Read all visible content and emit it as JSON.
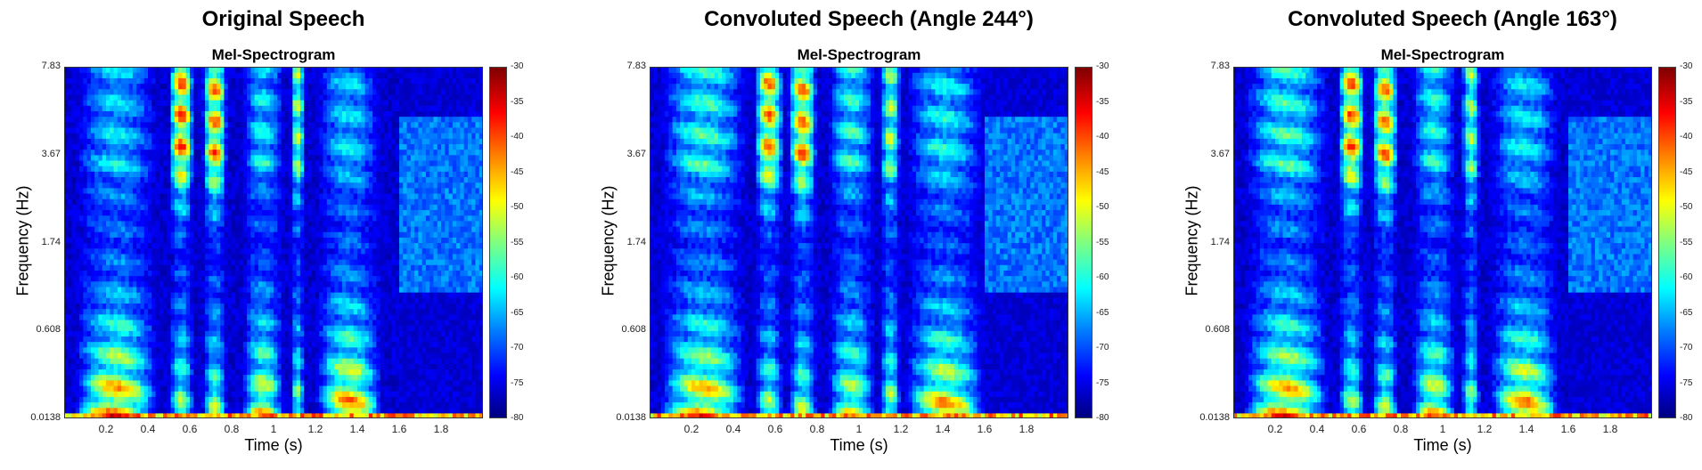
{
  "chart_data": [
    {
      "type": "heatmap",
      "suptitle": "Original Speech",
      "title": "Mel-Spectrogram",
      "xlabel": "Time (s)",
      "ylabel": "Frequency (Hz)",
      "xticks": [
        "0.2",
        "0.4",
        "0.6",
        "0.8",
        "1",
        "1.2",
        "1.4",
        "1.6",
        "1.8"
      ],
      "xtick_values": [
        0.2,
        0.4,
        0.6,
        0.8,
        1.0,
        1.2,
        1.4,
        1.6,
        1.8
      ],
      "xlim": [
        0,
        2.0
      ],
      "yticks": [
        "7.83",
        "3.67",
        "1.74",
        "0.608",
        "0.0138"
      ],
      "colorbar": {
        "ticks": [
          "-30",
          "-35",
          "-40",
          "-45",
          "-50",
          "-55",
          "-60",
          "-65",
          "-70",
          "-75",
          "-80"
        ],
        "range": [
          -80,
          -30
        ],
        "colormap": "jet"
      },
      "energy_events": [
        {
          "t_start": 0.05,
          "t_end": 0.45,
          "low_freq_intensity": 0.9,
          "high_freq_intensity": 0.3
        },
        {
          "t_start": 0.5,
          "t_end": 0.62,
          "low_freq_intensity": 0.6,
          "high_freq_intensity": 0.85
        },
        {
          "t_start": 0.66,
          "t_end": 0.78,
          "low_freq_intensity": 0.6,
          "high_freq_intensity": 0.8
        },
        {
          "t_start": 0.85,
          "t_end": 1.05,
          "low_freq_intensity": 0.75,
          "high_freq_intensity": 0.35
        },
        {
          "t_start": 1.08,
          "t_end": 1.15,
          "low_freq_intensity": 0.6,
          "high_freq_intensity": 0.6
        },
        {
          "t_start": 1.2,
          "t_end": 1.52,
          "low_freq_intensity": 0.85,
          "high_freq_intensity": 0.3
        }
      ]
    },
    {
      "type": "heatmap",
      "suptitle": "Convoluted Speech (Angle 244°)",
      "title": "Mel-Spectrogram",
      "xlabel": "Time (s)",
      "ylabel": "Frequency (Hz)",
      "xticks": [
        "0.2",
        "0.4",
        "0.6",
        "0.8",
        "1",
        "1.2",
        "1.4",
        "1.6",
        "1.8"
      ],
      "xtick_values": [
        0.2,
        0.4,
        0.6,
        0.8,
        1.0,
        1.2,
        1.4,
        1.6,
        1.8
      ],
      "xlim": [
        0,
        2.0
      ],
      "yticks": [
        "7.83",
        "3.67",
        "1.74",
        "0.608",
        "0.0138"
      ],
      "colorbar": {
        "ticks": [
          "-30",
          "-35",
          "-40",
          "-45",
          "-50",
          "-55",
          "-60",
          "-65",
          "-70",
          "-75",
          "-80"
        ],
        "range": [
          -80,
          -30
        ],
        "colormap": "jet"
      },
      "energy_events": [
        {
          "t_start": 0.05,
          "t_end": 0.47,
          "low_freq_intensity": 0.85,
          "high_freq_intensity": 0.4
        },
        {
          "t_start": 0.5,
          "t_end": 0.64,
          "low_freq_intensity": 0.6,
          "high_freq_intensity": 0.8
        },
        {
          "t_start": 0.66,
          "t_end": 0.8,
          "low_freq_intensity": 0.6,
          "high_freq_intensity": 0.8
        },
        {
          "t_start": 0.85,
          "t_end": 1.08,
          "low_freq_intensity": 0.7,
          "high_freq_intensity": 0.4
        },
        {
          "t_start": 1.1,
          "t_end": 1.2,
          "low_freq_intensity": 0.65,
          "high_freq_intensity": 0.55
        },
        {
          "t_start": 1.22,
          "t_end": 1.6,
          "low_freq_intensity": 0.8,
          "high_freq_intensity": 0.35
        }
      ]
    },
    {
      "type": "heatmap",
      "suptitle": "Convoluted Speech (Angle 163°)",
      "title": "Mel-Spectrogram",
      "xlabel": "Time (s)",
      "ylabel": "Frequency (Hz)",
      "xticks": [
        "0.2",
        "0.4",
        "0.6",
        "0.8",
        "1",
        "1.2",
        "1.4",
        "1.6",
        "1.8"
      ],
      "xtick_values": [
        0.2,
        0.4,
        0.6,
        0.8,
        1.0,
        1.2,
        1.4,
        1.6,
        1.8
      ],
      "xlim": [
        0,
        2.0
      ],
      "yticks": [
        "7.83",
        "3.67",
        "1.74",
        "0.608",
        "0.0138"
      ],
      "colorbar": {
        "ticks": [
          "-30",
          "-35",
          "-40",
          "-45",
          "-50",
          "-55",
          "-60",
          "-65",
          "-70",
          "-75",
          "-80"
        ],
        "range": [
          -80,
          -30
        ],
        "colormap": "jet"
      },
      "energy_events": [
        {
          "t_start": 0.05,
          "t_end": 0.46,
          "low_freq_intensity": 0.88,
          "high_freq_intensity": 0.4
        },
        {
          "t_start": 0.5,
          "t_end": 0.63,
          "low_freq_intensity": 0.6,
          "high_freq_intensity": 0.82
        },
        {
          "t_start": 0.66,
          "t_end": 0.79,
          "low_freq_intensity": 0.6,
          "high_freq_intensity": 0.8
        },
        {
          "t_start": 0.85,
          "t_end": 1.07,
          "low_freq_intensity": 0.72,
          "high_freq_intensity": 0.38
        },
        {
          "t_start": 1.09,
          "t_end": 1.18,
          "low_freq_intensity": 0.62,
          "high_freq_intensity": 0.55
        },
        {
          "t_start": 1.22,
          "t_end": 1.56,
          "low_freq_intensity": 0.82,
          "high_freq_intensity": 0.32
        }
      ]
    }
  ]
}
